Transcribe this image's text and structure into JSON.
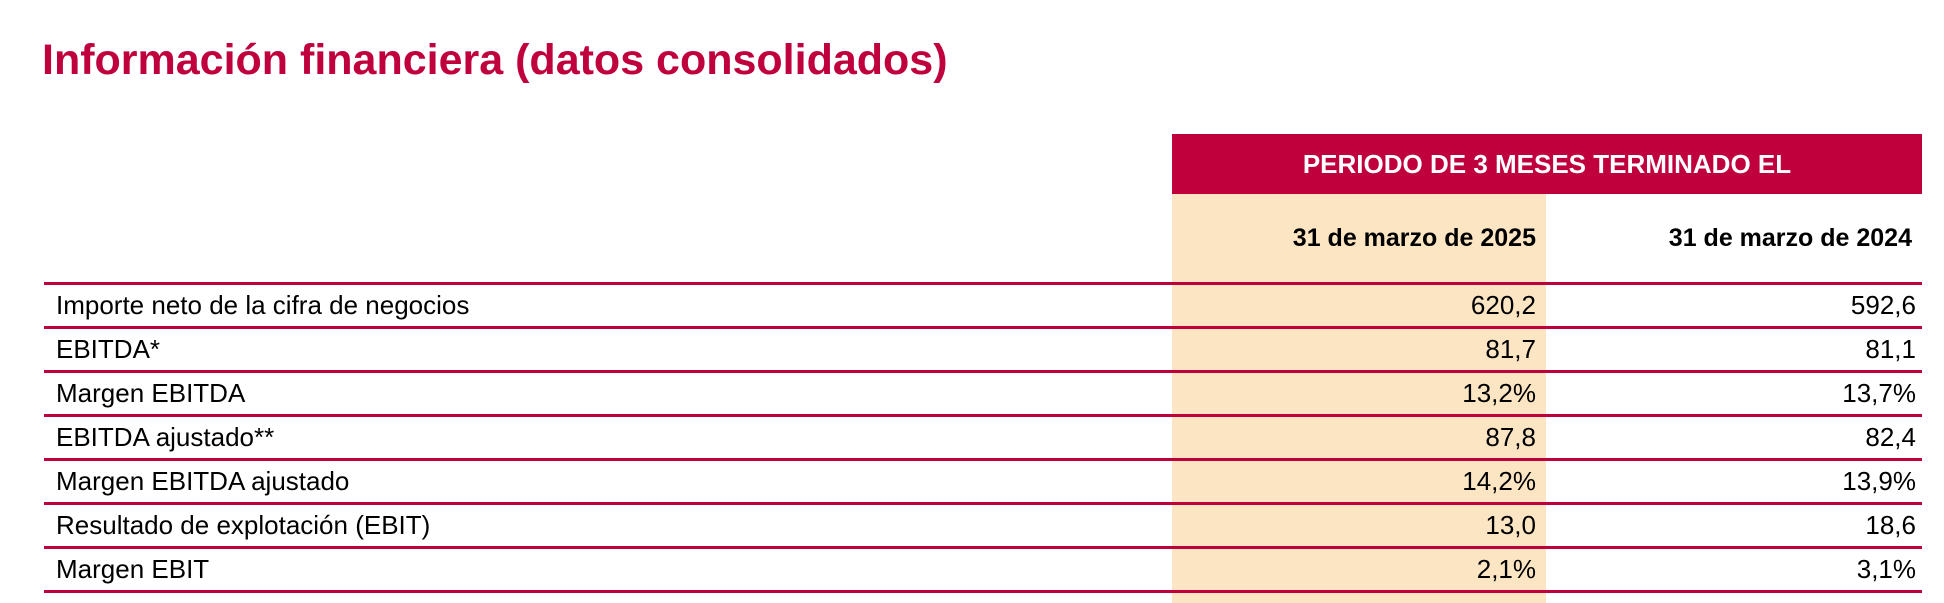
{
  "title": "Información financiera (datos consolidados)",
  "table": {
    "period_header": "PERIODO DE 3 MESES TERMINADO EL",
    "columns": [
      "31 de marzo de 2025",
      "31 de marzo de 2024"
    ],
    "rows": [
      {
        "label": "Importe neto de la cifra de negocios",
        "v2025": "620,2",
        "v2024": "592,6"
      },
      {
        "label": "EBITDA*",
        "v2025": "81,7",
        "v2024": "81,1"
      },
      {
        "label": "Margen EBITDA",
        "v2025": "13,2%",
        "v2024": "13,7%"
      },
      {
        "label": "EBITDA ajustado**",
        "v2025": "87,8",
        "v2024": "82,4"
      },
      {
        "label": "Margen EBITDA ajustado",
        "v2025": "14,2%",
        "v2024": "13,9%"
      },
      {
        "label": "Resultado de explotación (EBIT)",
        "v2025": "13,0",
        "v2024": "18,6"
      },
      {
        "label": "Margen EBIT",
        "v2025": "2,1%",
        "v2024": "3,1%"
      }
    ]
  },
  "colors": {
    "accent": "#c0003c",
    "highlight_column": "#fbe5c3"
  }
}
